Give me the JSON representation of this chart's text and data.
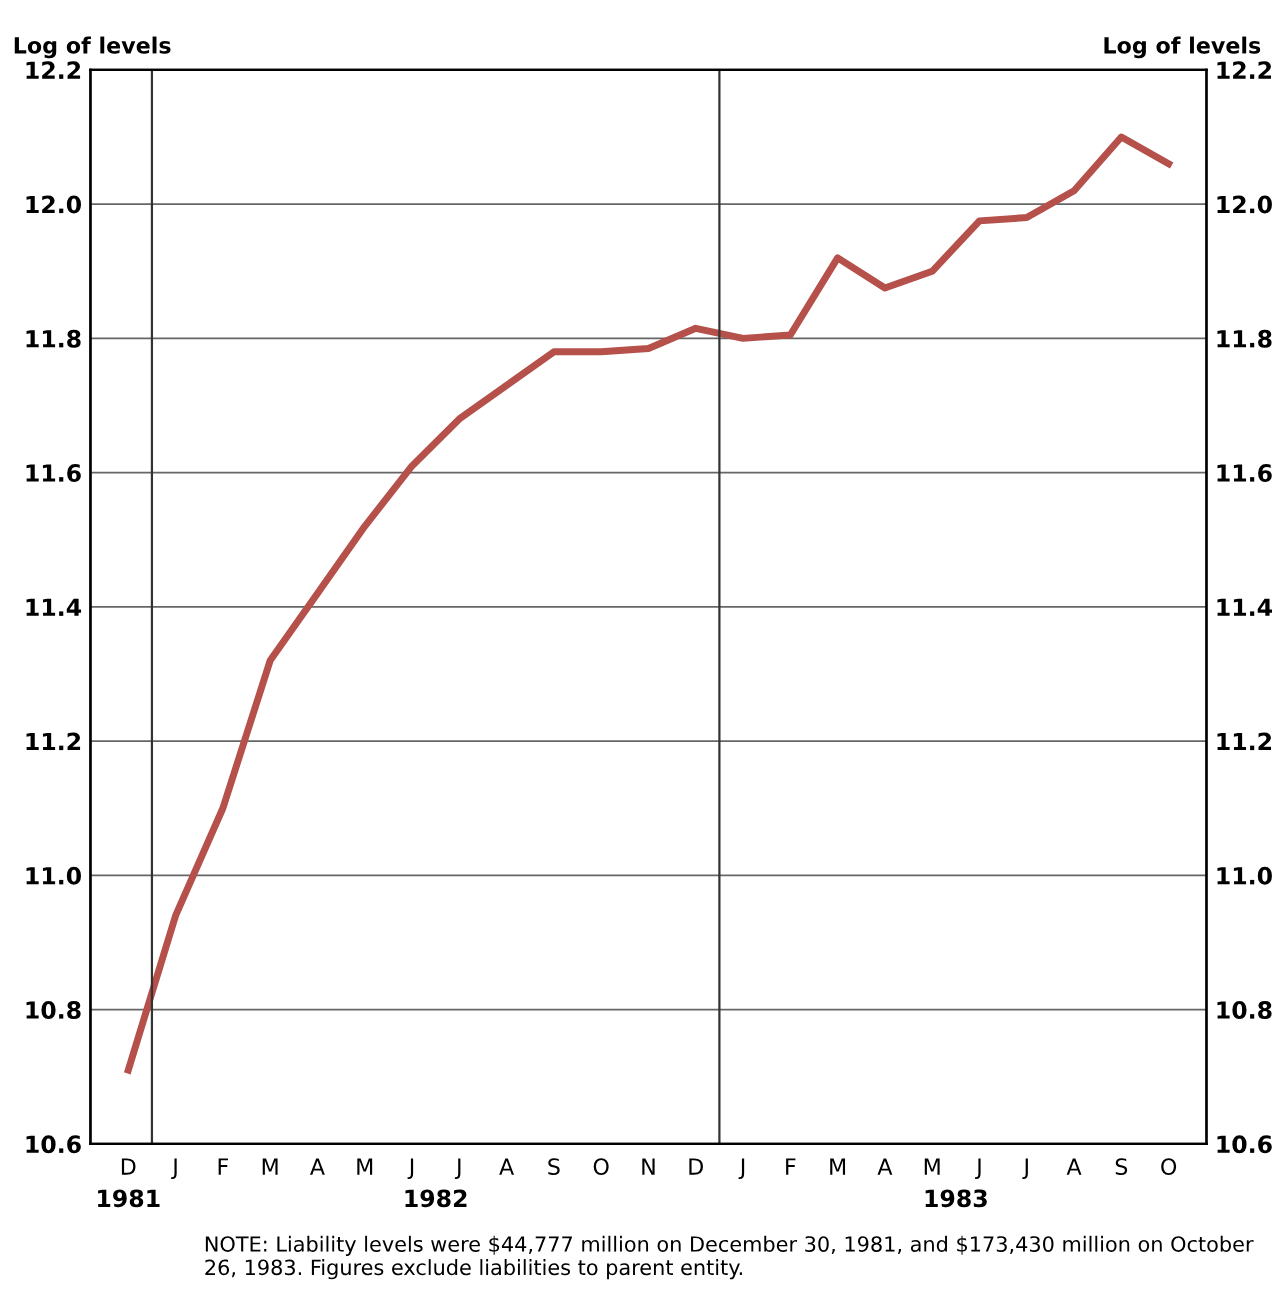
{
  "chart_data": {
    "type": "line",
    "ylabel": "Log of levels",
    "y2label": "Log of levels",
    "series": [
      {
        "color": "#b5504a",
        "values": [
          10.71,
          10.94,
          11.1,
          11.32,
          11.42,
          11.52,
          11.61,
          11.68,
          11.73,
          11.78,
          11.78,
          11.785,
          11.815,
          11.8,
          11.805,
          11.92,
          11.875,
          11.9,
          11.975,
          11.98,
          12.02,
          12.1,
          12.06
        ]
      }
    ],
    "categories": [
      "D",
      "J",
      "F",
      "M",
      "A",
      "M",
      "J",
      "J",
      "A",
      "S",
      "O",
      "N",
      "D",
      "J",
      "F",
      "M",
      "A",
      "M",
      "J",
      "J",
      "A",
      "S",
      "O"
    ],
    "ylim": [
      10.6,
      12.2
    ],
    "yticks": [
      {
        "value": 10.6,
        "label": "10.6"
      },
      {
        "value": 10.8,
        "label": "10.8"
      },
      {
        "value": 11.0,
        "label": "11.0"
      },
      {
        "value": 11.2,
        "label": "11.2"
      },
      {
        "value": 11.4,
        "label": "11.4"
      },
      {
        "value": 11.6,
        "label": "11.6"
      },
      {
        "value": 11.8,
        "label": "11.8"
      },
      {
        "value": 12.0,
        "label": "12.0"
      },
      {
        "value": 12.2,
        "label": "12.2"
      }
    ],
    "y2lim": [
      10.6,
      12.2
    ],
    "y2ticks": [
      {
        "value": 10.6,
        "label": "10.6"
      },
      {
        "value": 10.8,
        "label": "10.8"
      },
      {
        "value": 11.0,
        "label": "11.0"
      },
      {
        "value": 11.2,
        "label": "11.2"
      },
      {
        "value": 11.4,
        "label": "11.4"
      },
      {
        "value": 11.6,
        "label": "11.6"
      },
      {
        "value": 11.8,
        "label": "11.8"
      },
      {
        "value": 12.0,
        "label": "12.0"
      },
      {
        "value": 12.2,
        "label": "12.2"
      }
    ],
    "grid": "y",
    "legend": false,
    "marker": "none",
    "line_style": "solid",
    "annotations": [
      "1981",
      "1982",
      "1983",
      "NOTE: Liability levels were $44,777 million on December 30, 1981, and $173,430 million on October 26, 1983. Figures exclude liabilities to parent entity."
    ]
  }
}
